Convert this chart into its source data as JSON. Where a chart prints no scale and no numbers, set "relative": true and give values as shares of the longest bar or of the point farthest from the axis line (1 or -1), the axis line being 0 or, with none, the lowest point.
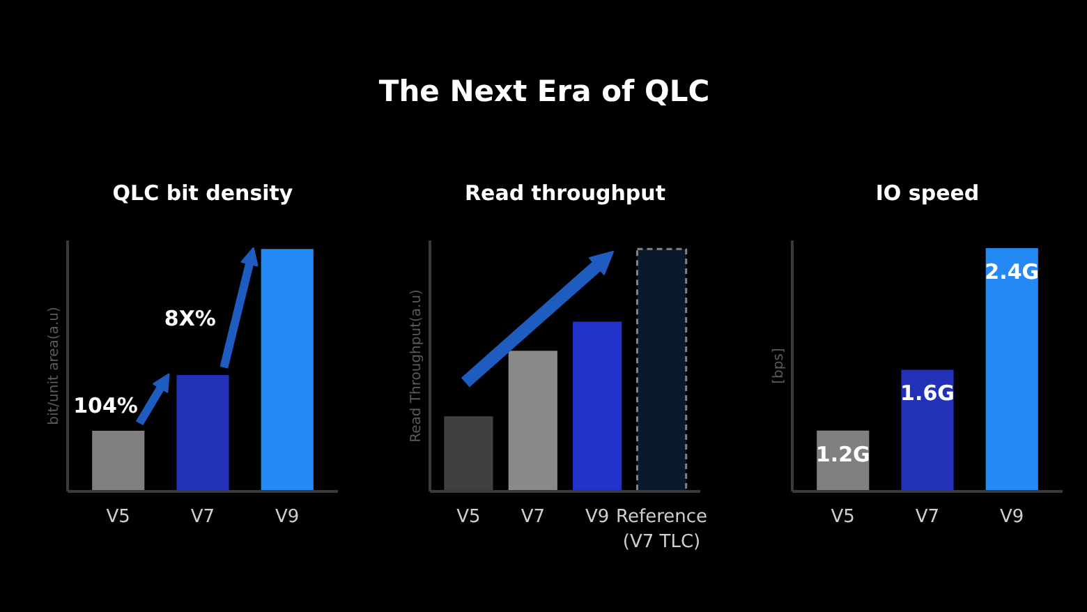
{
  "chart_data": [
    {
      "type": "other",
      "title": "The Next Era of QLC"
    },
    {
      "type": "bar",
      "title": "QLC bit density",
      "ylabel": "bit/unit area(a.u)",
      "categories": [
        "V5",
        "V7",
        "V9"
      ],
      "relative": true,
      "values": [
        0.25,
        0.48,
        1
      ],
      "colors": [
        "#808080",
        "#2231b5",
        "#2589f5"
      ],
      "annotations": [
        "104%",
        "8X%"
      ],
      "tick_labels": "x"
    },
    {
      "type": "bar",
      "title": "Read throughput",
      "ylabel": "Read Throughput(a.u)",
      "categories": [
        "V5",
        "V7",
        "V9",
        "Reference\n(V7 TLC)"
      ],
      "relative": true,
      "stacked": true,
      "series": [
        {
          "values": [
            0.31,
            0.58,
            0.7,
            null
          ],
          "colors": [
            "#404040",
            "#8a8a8a",
            "#2233cc",
            null
          ]
        },
        {
          "values": [
            null,
            null,
            null,
            1
          ],
          "color": "#0b1a2a",
          "line_style": "dashed"
        }
      ],
      "tick_labels": "x"
    },
    {
      "type": "bar",
      "title": "IO speed",
      "ylabel": "[bps]",
      "categories": [
        "V5",
        "V7",
        "V9"
      ],
      "values": [
        1.2,
        1.6,
        2.4
      ],
      "value_labels": [
        "1.2G",
        "1.6G",
        "2.4G"
      ],
      "colors": [
        "#808080",
        "#2231b5",
        "#2589f5"
      ],
      "ylim": [
        0.8,
        2.45
      ],
      "tick_labels": "x"
    }
  ]
}
